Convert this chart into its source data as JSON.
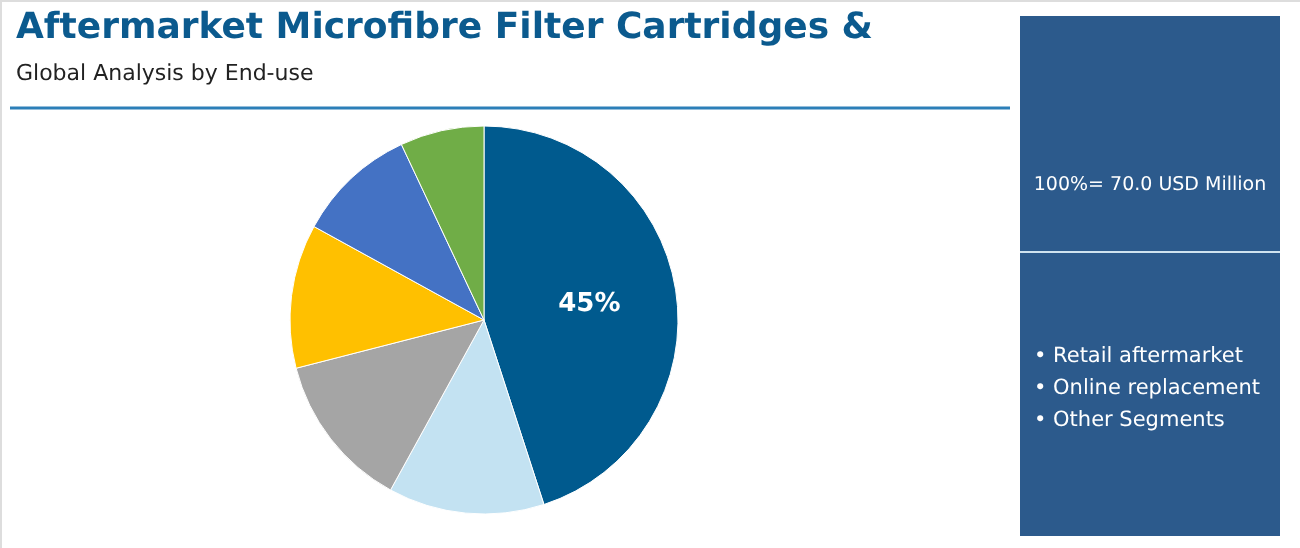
{
  "chart_data": {
    "type": "pie",
    "title": "Aftermarket Microfibre Filter Cartridges &",
    "subtitle": "Global Analysis by End-use",
    "categories": [
      null,
      null,
      null,
      null,
      null,
      null
    ],
    "values": [
      45,
      13,
      13,
      12,
      10,
      7
    ],
    "colors": [
      "#005a8e",
      "#c3e2f2",
      "#a5a5a5",
      "#ffc000",
      "#4472c4",
      "#70ad47"
    ],
    "value_labels": [
      "45%",
      null,
      null,
      null,
      null,
      null
    ],
    "annotations": [
      "100%= 70.0 USD Million",
      "• Retail aftermarket",
      "• Online replacement",
      "• Other Segments"
    ]
  }
}
